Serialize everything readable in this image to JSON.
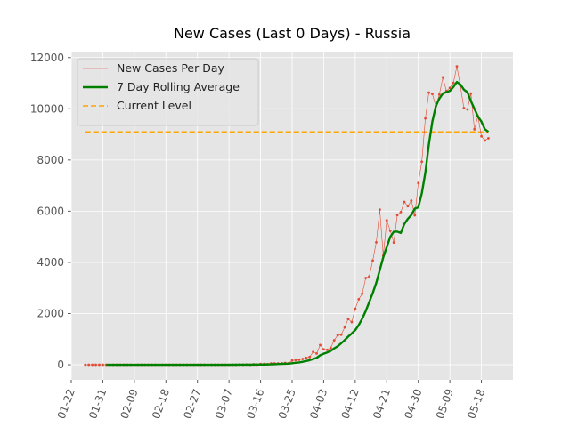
{
  "chart_data": {
    "type": "line",
    "title": "New Cases (Last 0 Days) - Russia",
    "x": [
      "01-26",
      "01-27",
      "01-28",
      "01-29",
      "01-30",
      "01-31",
      "02-01",
      "02-02",
      "02-03",
      "02-04",
      "02-05",
      "02-06",
      "02-07",
      "02-08",
      "02-09",
      "02-10",
      "02-11",
      "02-12",
      "02-13",
      "02-14",
      "02-15",
      "02-16",
      "02-17",
      "02-18",
      "02-19",
      "02-20",
      "02-21",
      "02-22",
      "02-23",
      "02-24",
      "02-25",
      "02-26",
      "02-27",
      "02-28",
      "02-29",
      "03-01",
      "03-02",
      "03-03",
      "03-04",
      "03-05",
      "03-06",
      "03-07",
      "03-08",
      "03-09",
      "03-10",
      "03-11",
      "03-12",
      "03-13",
      "03-14",
      "03-15",
      "03-16",
      "03-17",
      "03-18",
      "03-19",
      "03-20",
      "03-21",
      "03-22",
      "03-23",
      "03-24",
      "03-25",
      "03-26",
      "03-27",
      "03-28",
      "03-29",
      "03-30",
      "03-31",
      "04-01",
      "04-02",
      "04-03",
      "04-04",
      "04-05",
      "04-06",
      "04-07",
      "04-08",
      "04-09",
      "04-10",
      "04-11",
      "04-12",
      "04-13",
      "04-14",
      "04-15",
      "04-16",
      "04-17",
      "04-18",
      "04-19",
      "04-20",
      "04-21",
      "04-22",
      "04-23",
      "04-24",
      "04-25",
      "04-26",
      "04-27",
      "04-28",
      "04-29",
      "04-30",
      "05-01",
      "05-02",
      "05-03",
      "05-04",
      "05-05",
      "05-06",
      "05-07",
      "05-08",
      "05-09",
      "05-10",
      "05-11",
      "05-12",
      "05-13",
      "05-14",
      "05-15",
      "05-16",
      "05-17",
      "05-18",
      "05-19",
      "05-20"
    ],
    "series": [
      {
        "name": "New Cases Per Day",
        "color": "#e24a33",
        "marker": true,
        "width": 0.6,
        "values": [
          0,
          0,
          0,
          0,
          0,
          2,
          0,
          0,
          0,
          0,
          0,
          0,
          0,
          0,
          0,
          0,
          0,
          0,
          0,
          0,
          0,
          0,
          0,
          0,
          0,
          0,
          0,
          0,
          0,
          0,
          0,
          0,
          0,
          0,
          0,
          0,
          1,
          0,
          0,
          0,
          1,
          0,
          2,
          0,
          7,
          3,
          8,
          0,
          17,
          4,
          29,
          30,
          21,
          52,
          54,
          53,
          62,
          71,
          57,
          163,
          182,
          196,
          228,
          270,
          302,
          501,
          440,
          771,
          601,
          582,
          658,
          954,
          1154,
          1175,
          1459,
          1786,
          1667,
          2186,
          2558,
          2774,
          3388,
          3448,
          4070,
          4785,
          6060,
          4268,
          5642,
          5236,
          4774,
          5849,
          5966,
          6361,
          6198,
          6411,
          5841,
          7099,
          7933,
          9623,
          10633,
          10581,
          10102,
          10559,
          11231,
          10699,
          10817,
          11012,
          11656,
          10899,
          10028,
          9974,
          10598,
          9200,
          9709,
          8926,
          8764,
          8849
        ]
      },
      {
        "name": "7 Day Rolling Average",
        "color": "#008000",
        "marker": false,
        "width": 2.4,
        "values": [
          null,
          null,
          null,
          null,
          null,
          null,
          0.3,
          0.3,
          0.3,
          0.3,
          0.3,
          0.3,
          0,
          0,
          0,
          0,
          0,
          0,
          0,
          0,
          0,
          0,
          0,
          0,
          0,
          0,
          0,
          0,
          0,
          0,
          0,
          0,
          0,
          0,
          0,
          0,
          0.1,
          0.1,
          0.1,
          0.1,
          0.3,
          0.3,
          0.4,
          0.4,
          1.4,
          1.9,
          3,
          3,
          5,
          6,
          9,
          10,
          14,
          15,
          22,
          30,
          33,
          40,
          43,
          58,
          75,
          91,
          114,
          147,
          178,
          223,
          270,
          370,
          430,
          480,
          540,
          640,
          720,
          840,
          960,
          1100,
          1220,
          1350,
          1550,
          1800,
          2100,
          2450,
          2800,
          3200,
          3700,
          4200,
          4600,
          5000,
          5200,
          5200,
          5150,
          5500,
          5700,
          5850,
          6100,
          6150,
          6700,
          7500,
          8600,
          9500,
          10100,
          10400,
          10600,
          10650,
          10700,
          10850,
          11050,
          10950,
          10750,
          10650,
          10300,
          10000,
          9700,
          9500,
          9200,
          9100
        ]
      }
    ],
    "reference_lines": [
      {
        "name": "Current Level",
        "color": "#ffa500",
        "value": 9100,
        "dashed": true
      }
    ],
    "xlim": [
      "01-22",
      "05-27"
    ],
    "xticks": [
      "01-22",
      "01-31",
      "02-09",
      "02-18",
      "02-27",
      "03-07",
      "03-16",
      "03-25",
      "04-03",
      "04-12",
      "04-21",
      "04-30",
      "05-09",
      "05-18"
    ],
    "ylim": [
      -590,
      12200
    ],
    "yticks": [
      0,
      2000,
      4000,
      6000,
      8000,
      10000,
      12000
    ],
    "grid": true,
    "legend": "upper left"
  }
}
